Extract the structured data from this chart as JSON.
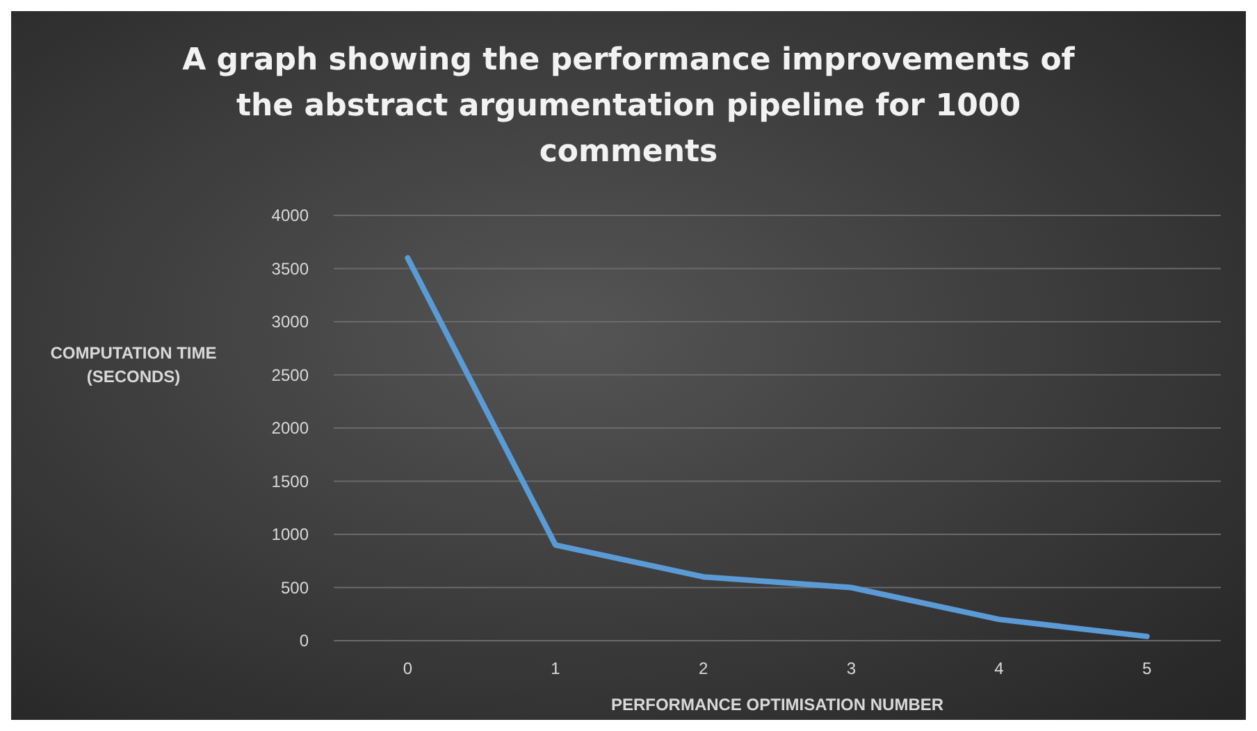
{
  "chart_data": {
    "type": "line",
    "title": "A graph showing the performance improvements of the abstract argumentation pipeline for 1000 comments",
    "xlabel": "PERFORMANCE OPTIMISATION NUMBER",
    "ylabel": "COMPUTATION TIME (SECONDS)",
    "categories": [
      "0",
      "1",
      "2",
      "3",
      "4",
      "5"
    ],
    "series": [
      {
        "color": "#5b9bd5",
        "values": [
          3600,
          900,
          600,
          500,
          200,
          40
        ]
      }
    ],
    "ylim": [
      0,
      4000
    ],
    "yticks": [
      0,
      500,
      1000,
      1500,
      2000,
      2500,
      3000,
      3500,
      4000
    ],
    "grid": "y",
    "marker": "none",
    "line_style": "solid"
  }
}
